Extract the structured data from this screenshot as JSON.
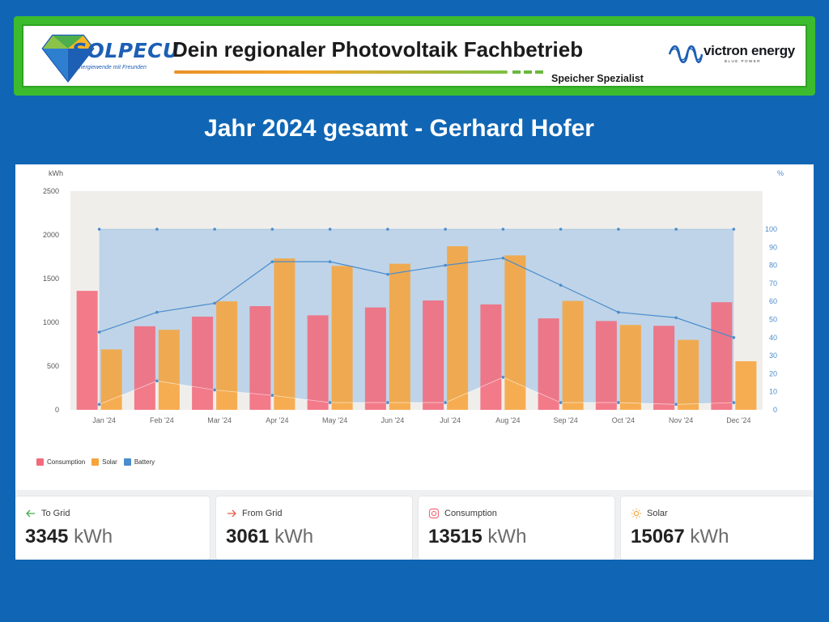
{
  "header": {
    "logo_text": "SOLPECU",
    "logo_subtitle": "Energiewende mit Freunden",
    "title": "Dein regionaler Photovoltaik Fachbetrieb",
    "subtitle": "Speicher Spezialist",
    "partner_name": "victron energy",
    "partner_tagline": "BLUE POWER"
  },
  "page": {
    "title": "Jahr 2024 gesamt - Gerhard Hofer"
  },
  "colors": {
    "consumption": "#f26a7b",
    "solar": "#f6a43b",
    "battery": "#4a8ccd",
    "battery_fill": "#bcd2e8",
    "plot_bg": "#f0eeeb"
  },
  "chart_data": {
    "type": "bar",
    "title": "",
    "y_left_label": "kWh",
    "y_right_label": "%",
    "ylim": [
      0,
      2500
    ],
    "y_left_ticks": [
      "0",
      "500",
      "1000",
      "1500",
      "2000",
      "2500"
    ],
    "y_right_lim": [
      0,
      100
    ],
    "y_right_ticks": [
      "0",
      "10",
      "20",
      "30",
      "40",
      "50",
      "60",
      "70",
      "80",
      "90",
      "100"
    ],
    "categories": [
      "Jan '24",
      "Feb '24",
      "Mar '24",
      "Apr '24",
      "May '24",
      "Jun '24",
      "Jul '24",
      "Aug '24",
      "Sep '24",
      "Oct '24",
      "Nov '24",
      "Dec '24"
    ],
    "series": [
      {
        "name": "Consumption",
        "type": "bar",
        "axis": "left",
        "values": [
          1360,
          955,
          1065,
          1185,
          1080,
          1170,
          1250,
          1205,
          1045,
          1015,
          960,
          1230
        ]
      },
      {
        "name": "Solar",
        "type": "bar",
        "axis": "left",
        "values": [
          690,
          915,
          1240,
          1730,
          1645,
          1670,
          1870,
          1765,
          1245,
          970,
          800,
          555
        ]
      },
      {
        "name": "Battery",
        "type": "line",
        "axis": "right",
        "max_values": [
          100,
          100,
          100,
          100,
          100,
          100,
          100,
          100,
          100,
          100,
          100,
          100
        ],
        "avg_values": [
          43,
          54,
          59,
          82,
          82,
          75,
          80,
          84,
          69,
          54,
          51,
          40
        ],
        "min_values": [
          3,
          16,
          11,
          8,
          4,
          4,
          4,
          18,
          4,
          4,
          3,
          4
        ]
      }
    ],
    "legend": [
      "Consumption",
      "Solar",
      "Battery"
    ],
    "legend_position": "bottom-left",
    "grid": false
  },
  "stats": [
    {
      "label": "To Grid",
      "value": "3345",
      "unit": "kWh",
      "icon": "arrow-left-icon",
      "icon_color": "#3fae49"
    },
    {
      "label": "From Grid",
      "value": "3061",
      "unit": "kWh",
      "icon": "arrow-right-icon",
      "icon_color": "#e85b4c"
    },
    {
      "label": "Consumption",
      "value": "13515",
      "unit": "kWh",
      "icon": "consumption-icon",
      "icon_color": "#f26a7b"
    },
    {
      "label": "Solar",
      "value": "15067",
      "unit": "kWh",
      "icon": "sun-icon",
      "icon_color": "#f6a43b"
    }
  ]
}
